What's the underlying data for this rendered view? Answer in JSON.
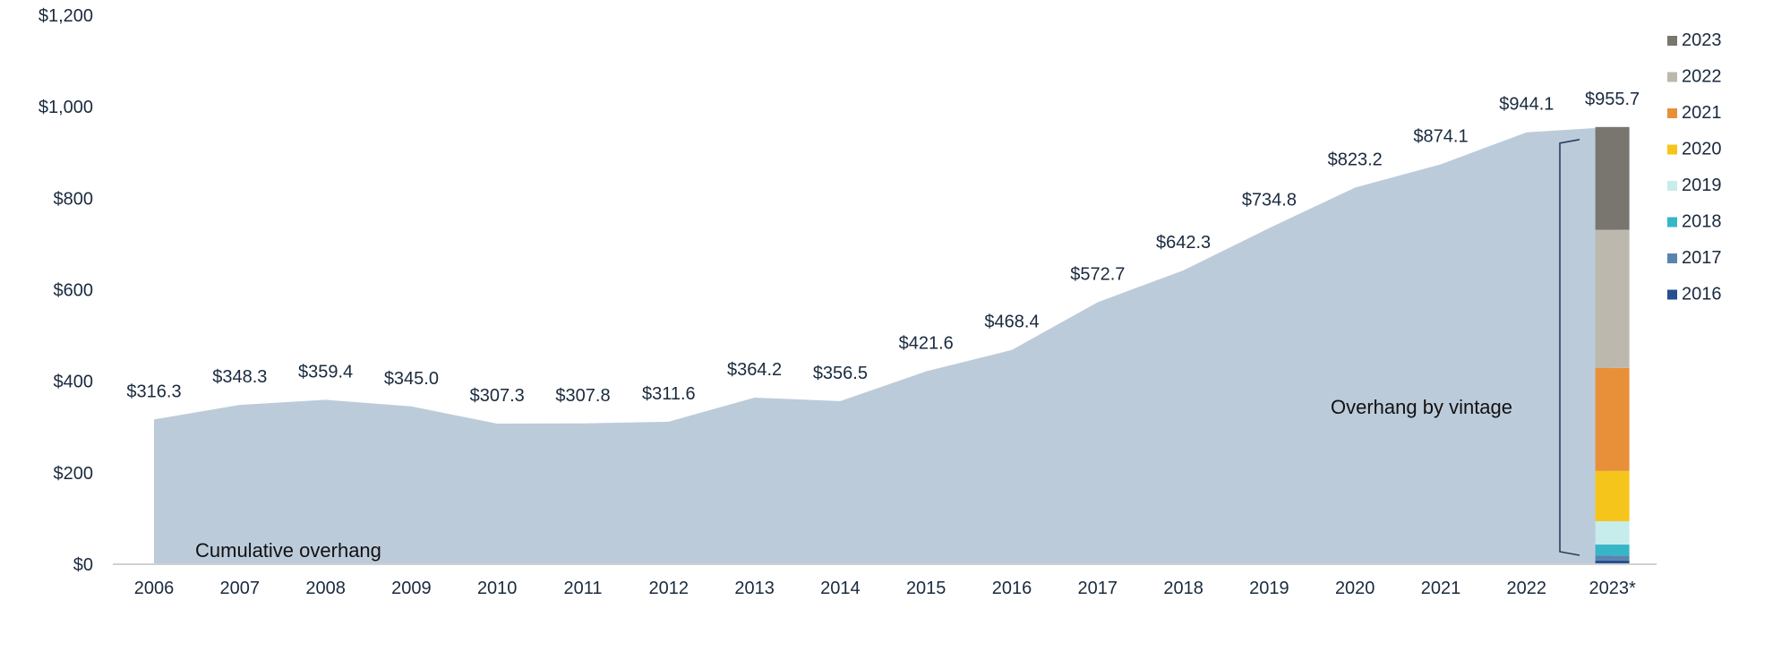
{
  "chart_data": {
    "type": "area",
    "title": "",
    "xlabel": "",
    "ylabel": "",
    "ylim": [
      0,
      1200
    ],
    "yticks": [
      "$0",
      "$200",
      "$400",
      "$600",
      "$800",
      "$1,000",
      "$1,200"
    ],
    "grid": false,
    "categories": [
      "2006",
      "2007",
      "2008",
      "2009",
      "2010",
      "2011",
      "2012",
      "2013",
      "2014",
      "2015",
      "2016",
      "2017",
      "2018",
      "2019",
      "2020",
      "2021",
      "2022",
      "2023*"
    ],
    "series": [
      {
        "values": [
          316.3,
          348.3,
          359.4,
          345.0,
          307.3,
          307.8,
          311.6,
          364.2,
          356.5,
          421.6,
          468.4,
          572.7,
          642.3,
          734.8,
          823.2,
          874.1,
          944.1,
          955.7
        ],
        "color": "#bccbda"
      }
    ],
    "data_labels": [
      "$316.3",
      "$348.3",
      "$359.4",
      "$345.0",
      "$307.3",
      "$307.8",
      "$311.6",
      "$364.2",
      "$356.5",
      "$421.6",
      "$468.4",
      "$572.7",
      "$642.3",
      "$734.8",
      "$823.2",
      "$874.1",
      "$944.1",
      "$955.7"
    ],
    "stacked_bar": {
      "category": "2023*",
      "segments": [
        {
          "vintage": "2016",
          "value": 8,
          "color": "#26508f"
        },
        {
          "vintage": "2017",
          "value": 11,
          "color": "#5a84b0"
        },
        {
          "vintage": "2018",
          "value": 24,
          "color": "#36b6c6"
        },
        {
          "vintage": "2019",
          "value": 51,
          "color": "#c7ecec"
        },
        {
          "vintage": "2020",
          "value": 110,
          "color": "#f6c51b"
        },
        {
          "vintage": "2021",
          "value": 225,
          "color": "#e88f39"
        },
        {
          "vintage": "2022",
          "value": 302,
          "color": "#bdb8ad"
        },
        {
          "vintage": "2023",
          "value": 224.7,
          "color": "#797670"
        }
      ]
    },
    "legend": {
      "placement": "right",
      "entries": [
        {
          "label": "2023",
          "color": "#797670"
        },
        {
          "label": "2022",
          "color": "#bdb8ad"
        },
        {
          "label": "2021",
          "color": "#e88f39"
        },
        {
          "label": "2020",
          "color": "#f6c51b"
        },
        {
          "label": "2019",
          "color": "#c7ecec"
        },
        {
          "label": "2018",
          "color": "#36b6c6"
        },
        {
          "label": "2017",
          "color": "#5a84b0"
        },
        {
          "label": "2016",
          "color": "#26508f"
        }
      ]
    },
    "annotations": {
      "area_label": "Cumulative overhang",
      "bracket_label": "Overhang by vintage"
    }
  }
}
